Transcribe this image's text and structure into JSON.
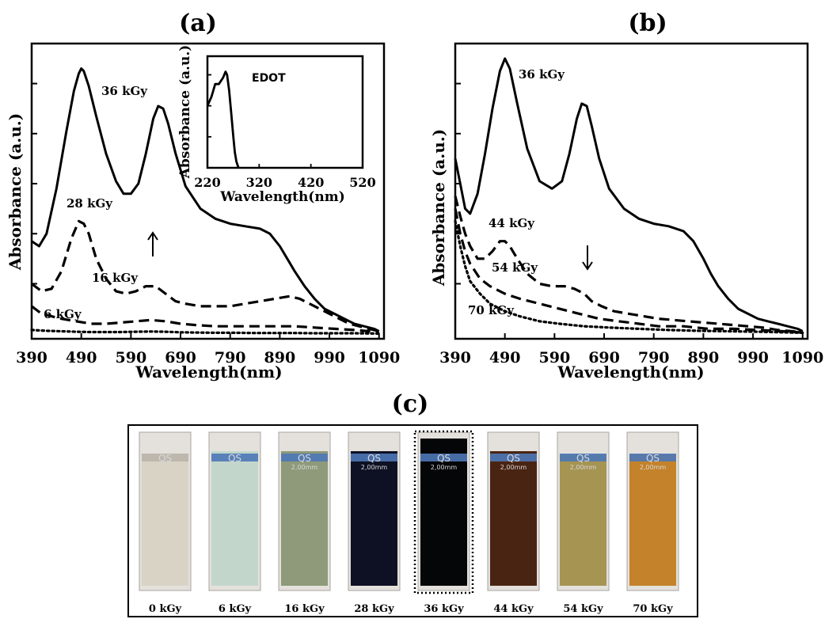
{
  "panel_titles": {
    "a": "(a)",
    "b": "(b)",
    "c": "(c)"
  },
  "colors": {
    "line": "#000000",
    "background": "#ffffff"
  },
  "chart_data": [
    {
      "id": "a",
      "type": "line",
      "xlabel": "Wavelength(nm)",
      "ylabel": "Absorbance (a.u.)",
      "xlim": [
        390,
        1100
      ],
      "xticks": [
        390,
        490,
        590,
        690,
        790,
        890,
        990,
        1090
      ],
      "y_tick_labels_shown": false,
      "annotation": "up-arrow",
      "series": [
        {
          "label": "36 kGy",
          "dash": "solid",
          "x": [
            390,
            405,
            420,
            440,
            460,
            475,
            485,
            490,
            495,
            505,
            520,
            540,
            560,
            575,
            590,
            605,
            620,
            635,
            645,
            655,
            665,
            680,
            700,
            730,
            760,
            790,
            820,
            850,
            870,
            890,
            905,
            920,
            940,
            960,
            980,
            1000,
            1020,
            1040,
            1060,
            1080,
            1090
          ],
          "y": [
            0.37,
            0.35,
            0.4,
            0.58,
            0.81,
            0.97,
            1.04,
            1.06,
            1.05,
            0.99,
            0.87,
            0.72,
            0.61,
            0.56,
            0.56,
            0.6,
            0.72,
            0.86,
            0.91,
            0.9,
            0.84,
            0.72,
            0.59,
            0.5,
            0.46,
            0.44,
            0.43,
            0.42,
            0.4,
            0.35,
            0.3,
            0.25,
            0.19,
            0.14,
            0.1,
            0.08,
            0.06,
            0.04,
            0.03,
            0.02,
            0.01
          ]
        },
        {
          "label": "28 kGy",
          "dash": "dashed",
          "x": [
            390,
            410,
            430,
            450,
            470,
            485,
            495,
            505,
            520,
            540,
            560,
            580,
            600,
            620,
            640,
            660,
            680,
            700,
            730,
            760,
            790,
            820,
            850,
            880,
            910,
            930,
            950,
            970,
            990,
            1010,
            1030,
            1050,
            1070,
            1090
          ],
          "y": [
            0.2,
            0.17,
            0.18,
            0.25,
            0.38,
            0.45,
            0.44,
            0.4,
            0.3,
            0.22,
            0.17,
            0.16,
            0.17,
            0.19,
            0.19,
            0.16,
            0.13,
            0.12,
            0.11,
            0.11,
            0.11,
            0.12,
            0.13,
            0.14,
            0.15,
            0.14,
            0.12,
            0.1,
            0.08,
            0.06,
            0.04,
            0.03,
            0.02,
            0.01
          ]
        },
        {
          "label": "16 kGy",
          "dash": "dashed",
          "x": [
            390,
            410,
            430,
            450,
            480,
            510,
            540,
            570,
            600,
            630,
            660,
            690,
            720,
            760,
            800,
            840,
            880,
            920,
            960,
            1000,
            1040,
            1070,
            1090
          ],
          "y": [
            0.11,
            0.08,
            0.07,
            0.06,
            0.05,
            0.04,
            0.04,
            0.045,
            0.05,
            0.055,
            0.05,
            0.04,
            0.035,
            0.03,
            0.03,
            0.03,
            0.03,
            0.03,
            0.025,
            0.02,
            0.015,
            0.01,
            0.01
          ]
        },
        {
          "label": "6 kGy",
          "dash": "dotted",
          "x": [
            390,
            420,
            450,
            480,
            510,
            540,
            570,
            600,
            630,
            660,
            690,
            720,
            760,
            800,
            840,
            880,
            920,
            960,
            1000,
            1040,
            1090
          ],
          "y": [
            0.015,
            0.012,
            0.01,
            0.008,
            0.007,
            0.007,
            0.007,
            0.008,
            0.009,
            0.008,
            0.006,
            0.005,
            0.004,
            0.004,
            0.003,
            0.003,
            0.003,
            0.002,
            0.002,
            0.002,
            0.001
          ]
        }
      ],
      "inset": {
        "type": "line",
        "title": "EDOT",
        "xlabel": "Wavelength(nm)",
        "ylabel": "Absorbance (a.u.)",
        "xlim": [
          220,
          520
        ],
        "xticks": [
          220,
          320,
          420,
          520
        ],
        "x": [
          220,
          228,
          235,
          242,
          250,
          255,
          258,
          262,
          266,
          270,
          273,
          276,
          280
        ],
        "y": [
          0.4,
          0.46,
          0.54,
          0.54,
          0.58,
          0.62,
          0.6,
          0.5,
          0.35,
          0.2,
          0.1,
          0.04,
          0.0
        ]
      }
    },
    {
      "id": "b",
      "type": "line",
      "xlabel": "Wavelength(nm)",
      "ylabel": "Absorbance (a.u.)",
      "xlim": [
        390,
        1100
      ],
      "xticks": [
        390,
        490,
        590,
        690,
        790,
        890,
        990,
        1090
      ],
      "y_tick_labels_shown": false,
      "annotation": "down-arrow",
      "series": [
        {
          "label": "36 kGy",
          "dash": "solid",
          "x": [
            390,
            400,
            410,
            420,
            435,
            450,
            465,
            480,
            490,
            500,
            515,
            535,
            560,
            585,
            605,
            620,
            635,
            645,
            655,
            665,
            680,
            700,
            730,
            760,
            790,
            820,
            850,
            870,
            890,
            905,
            920,
            940,
            960,
            980,
            1000,
            1020,
            1040,
            1060,
            1080,
            1090
          ],
          "y": [
            0.7,
            0.6,
            0.5,
            0.48,
            0.56,
            0.72,
            0.9,
            1.05,
            1.1,
            1.06,
            0.92,
            0.74,
            0.61,
            0.58,
            0.61,
            0.72,
            0.86,
            0.92,
            0.91,
            0.83,
            0.7,
            0.58,
            0.5,
            0.46,
            0.44,
            0.43,
            0.41,
            0.37,
            0.3,
            0.24,
            0.19,
            0.14,
            0.1,
            0.08,
            0.06,
            0.05,
            0.04,
            0.03,
            0.02,
            0.01
          ]
        },
        {
          "label": "44 kGy",
          "dash": "dashed",
          "x": [
            390,
            400,
            410,
            420,
            435,
            450,
            465,
            480,
            490,
            500,
            515,
            535,
            560,
            585,
            610,
            630,
            650,
            665,
            685,
            710,
            740,
            770,
            800,
            830,
            860,
            890,
            920,
            950,
            980,
            1010,
            1040,
            1070,
            1090
          ],
          "y": [
            0.55,
            0.47,
            0.4,
            0.35,
            0.3,
            0.3,
            0.33,
            0.37,
            0.37,
            0.35,
            0.3,
            0.24,
            0.2,
            0.19,
            0.19,
            0.18,
            0.16,
            0.13,
            0.11,
            0.09,
            0.08,
            0.07,
            0.06,
            0.055,
            0.05,
            0.045,
            0.04,
            0.035,
            0.03,
            0.025,
            0.015,
            0.01,
            0.005
          ]
        },
        {
          "label": "54 kGy",
          "dash": "dashed",
          "x": [
            390,
            400,
            410,
            420,
            440,
            460,
            490,
            520,
            560,
            600,
            640,
            680,
            720,
            760,
            800,
            850,
            900,
            950,
            1000,
            1050,
            1090
          ],
          "y": [
            0.5,
            0.4,
            0.33,
            0.28,
            0.22,
            0.19,
            0.16,
            0.14,
            0.12,
            0.1,
            0.08,
            0.06,
            0.05,
            0.04,
            0.03,
            0.03,
            0.02,
            0.02,
            0.015,
            0.01,
            0.005
          ]
        },
        {
          "label": "70 kGy",
          "dash": "dotted",
          "x": [
            390,
            400,
            410,
            420,
            440,
            460,
            490,
            520,
            560,
            600,
            650,
            700,
            760,
            820,
            880,
            940,
            1000,
            1050,
            1090
          ],
          "y": [
            0.45,
            0.35,
            0.27,
            0.21,
            0.16,
            0.12,
            0.09,
            0.07,
            0.05,
            0.04,
            0.03,
            0.025,
            0.02,
            0.015,
            0.012,
            0.01,
            0.008,
            0.006,
            0.004
          ]
        }
      ]
    }
  ],
  "vials": [
    {
      "dose": "0 kGy",
      "color": "#d9d3c6",
      "band": "#b8b3a8",
      "liquid_top": 0.18,
      "highlight": false,
      "mark_text": "QS",
      "mark_sub": ""
    },
    {
      "dose": "6 kGy",
      "color": "#c3d6cc",
      "band": "#4d78b7",
      "liquid_top": 0.12,
      "highlight": false,
      "mark_text": "QS",
      "mark_sub": ""
    },
    {
      "dose": "16 kGy",
      "color": "#8e9a79",
      "band": "#4d78b7",
      "liquid_top": 0.12,
      "highlight": false,
      "mark_text": "QS",
      "mark_sub": "2,00mm"
    },
    {
      "dose": "28 kGy",
      "color": "#0e1124",
      "band": "#4d78b7",
      "liquid_top": 0.12,
      "highlight": false,
      "mark_text": "QS",
      "mark_sub": "2,00mm"
    },
    {
      "dose": "36 kGy",
      "color": "#050608",
      "band": "#4d78b7",
      "liquid_top": 0.04,
      "highlight": true,
      "mark_text": "QS",
      "mark_sub": "2,00mm"
    },
    {
      "dose": "44 kGy",
      "color": "#4a2412",
      "band": "#4d78b7",
      "liquid_top": 0.12,
      "highlight": false,
      "mark_text": "QS",
      "mark_sub": "2,00mm"
    },
    {
      "dose": "54 kGy",
      "color": "#a69452",
      "band": "#4d78b7",
      "liquid_top": 0.14,
      "highlight": false,
      "mark_text": "QS",
      "mark_sub": "2,00mm"
    },
    {
      "dose": "70 kGy",
      "color": "#c4822a",
      "band": "#4d78b7",
      "liquid_top": 0.14,
      "highlight": false,
      "mark_text": "QS",
      "mark_sub": "2,00mm"
    }
  ]
}
